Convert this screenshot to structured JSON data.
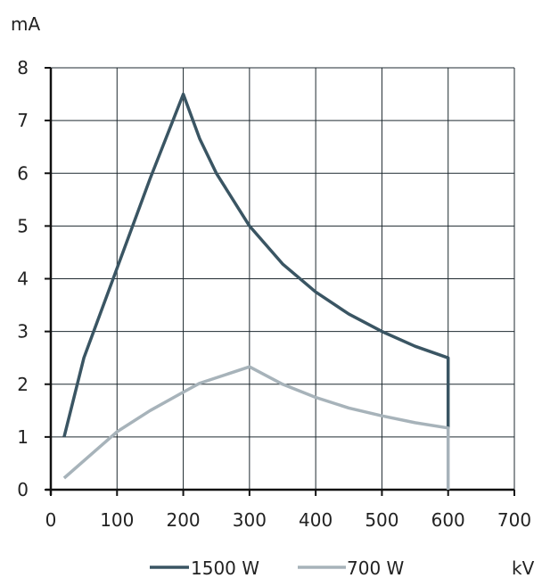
{
  "chart_data": {
    "type": "line",
    "y_unit": "mA",
    "x_unit": "kV",
    "xlim": [
      0,
      700
    ],
    "ylim": [
      0,
      8
    ],
    "x_ticks": [
      0,
      100,
      200,
      300,
      400,
      500,
      600,
      700
    ],
    "y_ticks": [
      0,
      1,
      2,
      3,
      4,
      5,
      6,
      7,
      8
    ],
    "grid": true,
    "legend_position": "bottom",
    "series": [
      {
        "name": "1500 W",
        "color": "#3a5563",
        "points": [
          [
            20,
            1.0
          ],
          [
            50,
            2.5
          ],
          [
            100,
            4.2
          ],
          [
            150,
            5.9
          ],
          [
            200,
            7.5
          ],
          [
            225,
            6.65
          ],
          [
            250,
            6.0
          ],
          [
            300,
            5.0
          ],
          [
            350,
            4.28
          ],
          [
            400,
            3.75
          ],
          [
            450,
            3.33
          ],
          [
            500,
            3.0
          ],
          [
            550,
            2.72
          ],
          [
            600,
            2.5
          ],
          [
            600,
            1.15
          ]
        ]
      },
      {
        "name": "700 W",
        "color": "#a7b3ba",
        "points": [
          [
            20,
            0.22
          ],
          [
            100,
            1.1
          ],
          [
            150,
            1.5
          ],
          [
            200,
            1.85
          ],
          [
            225,
            2.02
          ],
          [
            300,
            2.33
          ],
          [
            350,
            2.0
          ],
          [
            400,
            1.75
          ],
          [
            450,
            1.55
          ],
          [
            500,
            1.4
          ],
          [
            550,
            1.27
          ],
          [
            600,
            1.17
          ],
          [
            600,
            0.0
          ]
        ]
      }
    ]
  }
}
